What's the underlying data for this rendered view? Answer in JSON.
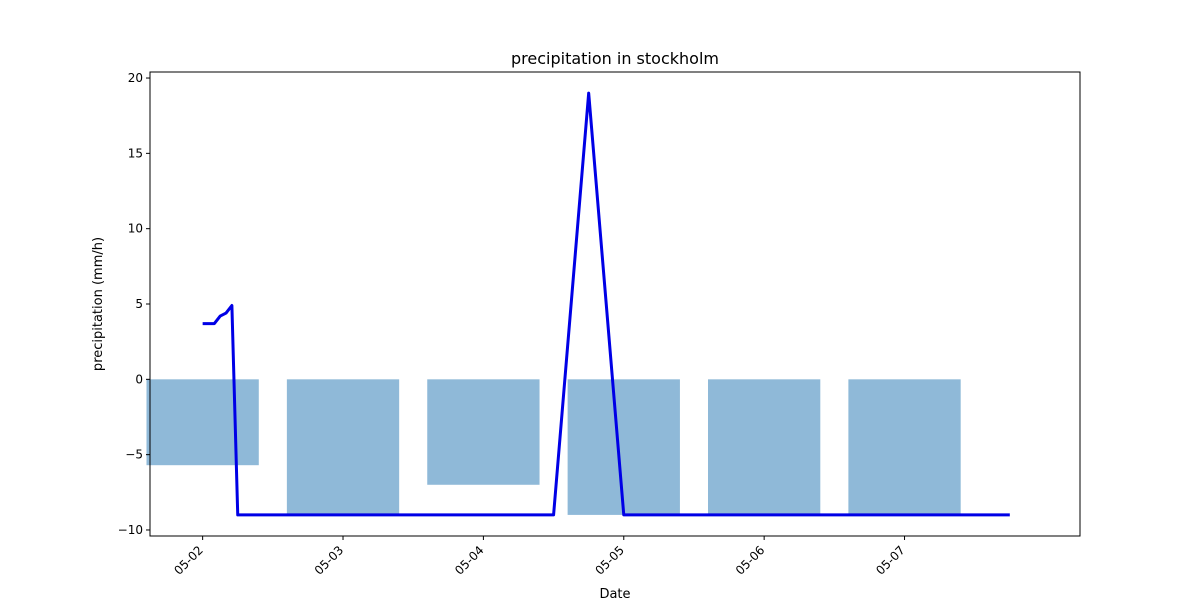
{
  "chart_data": {
    "type": "bar+line",
    "title": "precipitation in stockholm",
    "xlabel": "Date",
    "ylabel": "precipitation (mm/h)",
    "xlim": [
      "2023-05-01 15:00",
      "2023-05-08 06:00"
    ],
    "ylim": [
      -10.4,
      20.4
    ],
    "x_ticks": [
      "05-02",
      "05-03",
      "05-04",
      "05-05",
      "05-06",
      "05-07"
    ],
    "y_ticks": [
      -10,
      -5,
      0,
      5,
      10,
      15,
      20
    ],
    "grid": false,
    "bars": {
      "categories": [
        "2023-05-02",
        "2023-05-03",
        "2023-05-04",
        "2023-05-05",
        "2023-05-06",
        "2023-05-07"
      ],
      "values": [
        -5.7,
        -9.0,
        -7.0,
        -9.0,
        -9.0,
        -9.0
      ],
      "width_days": 0.8,
      "color": "#8fb9d8"
    },
    "line": {
      "color": "#0000e6",
      "points": [
        [
          "2023-05-02 00:00",
          3.7
        ],
        [
          "2023-05-02 02:00",
          3.7
        ],
        [
          "2023-05-02 03:00",
          4.2
        ],
        [
          "2023-05-02 04:00",
          4.4
        ],
        [
          "2023-05-02 05:00",
          4.9
        ],
        [
          "2023-05-02 06:00",
          -9.0
        ],
        [
          "2023-05-04 12:00",
          -9.0
        ],
        [
          "2023-05-04 18:00",
          19.0
        ],
        [
          "2023-05-05 00:00",
          -9.0
        ],
        [
          "2023-05-07 18:00",
          -9.0
        ]
      ]
    }
  }
}
